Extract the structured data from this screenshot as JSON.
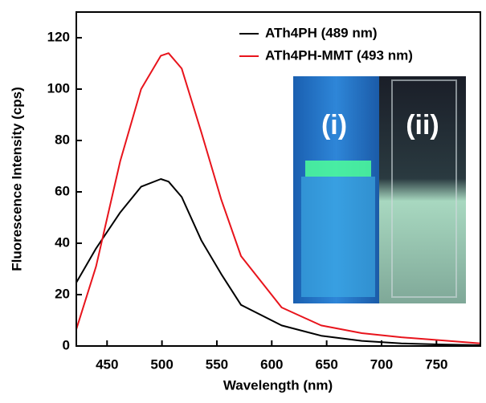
{
  "chart_data": {
    "type": "line",
    "x_label": "Wavelength (nm)",
    "y_label": "Fluorescence Intensity (cps)",
    "x": [
      422,
      440,
      462,
      481,
      499,
      506,
      518,
      536,
      554,
      572,
      609,
      645,
      682,
      718,
      755,
      790
    ],
    "series": [
      {
        "name": "ATh4PH (489 nm)",
        "color": "#000000",
        "values": [
          24.7,
          38,
          52,
          62,
          65,
          64,
          58,
          41,
          28,
          16,
          8,
          4,
          2,
          1,
          0.6,
          0.3
        ]
      },
      {
        "name": "ATh4PH-MMT (493 nm)",
        "color": "#e8141c",
        "values": [
          6.5,
          31,
          72,
          100,
          113,
          114,
          108,
          83,
          57,
          35,
          15,
          8,
          5,
          3.4,
          2.2,
          1
        ]
      }
    ],
    "xlim": [
      422,
      790
    ],
    "xticks": [
      450,
      500,
      550,
      600,
      650,
      700,
      750
    ],
    "ylim": [
      0,
      130
    ],
    "yticks": [
      0,
      20,
      40,
      60,
      80,
      100,
      120
    ],
    "legend": "upper right",
    "annotations": [
      "(i)",
      "(ii)"
    ]
  }
}
